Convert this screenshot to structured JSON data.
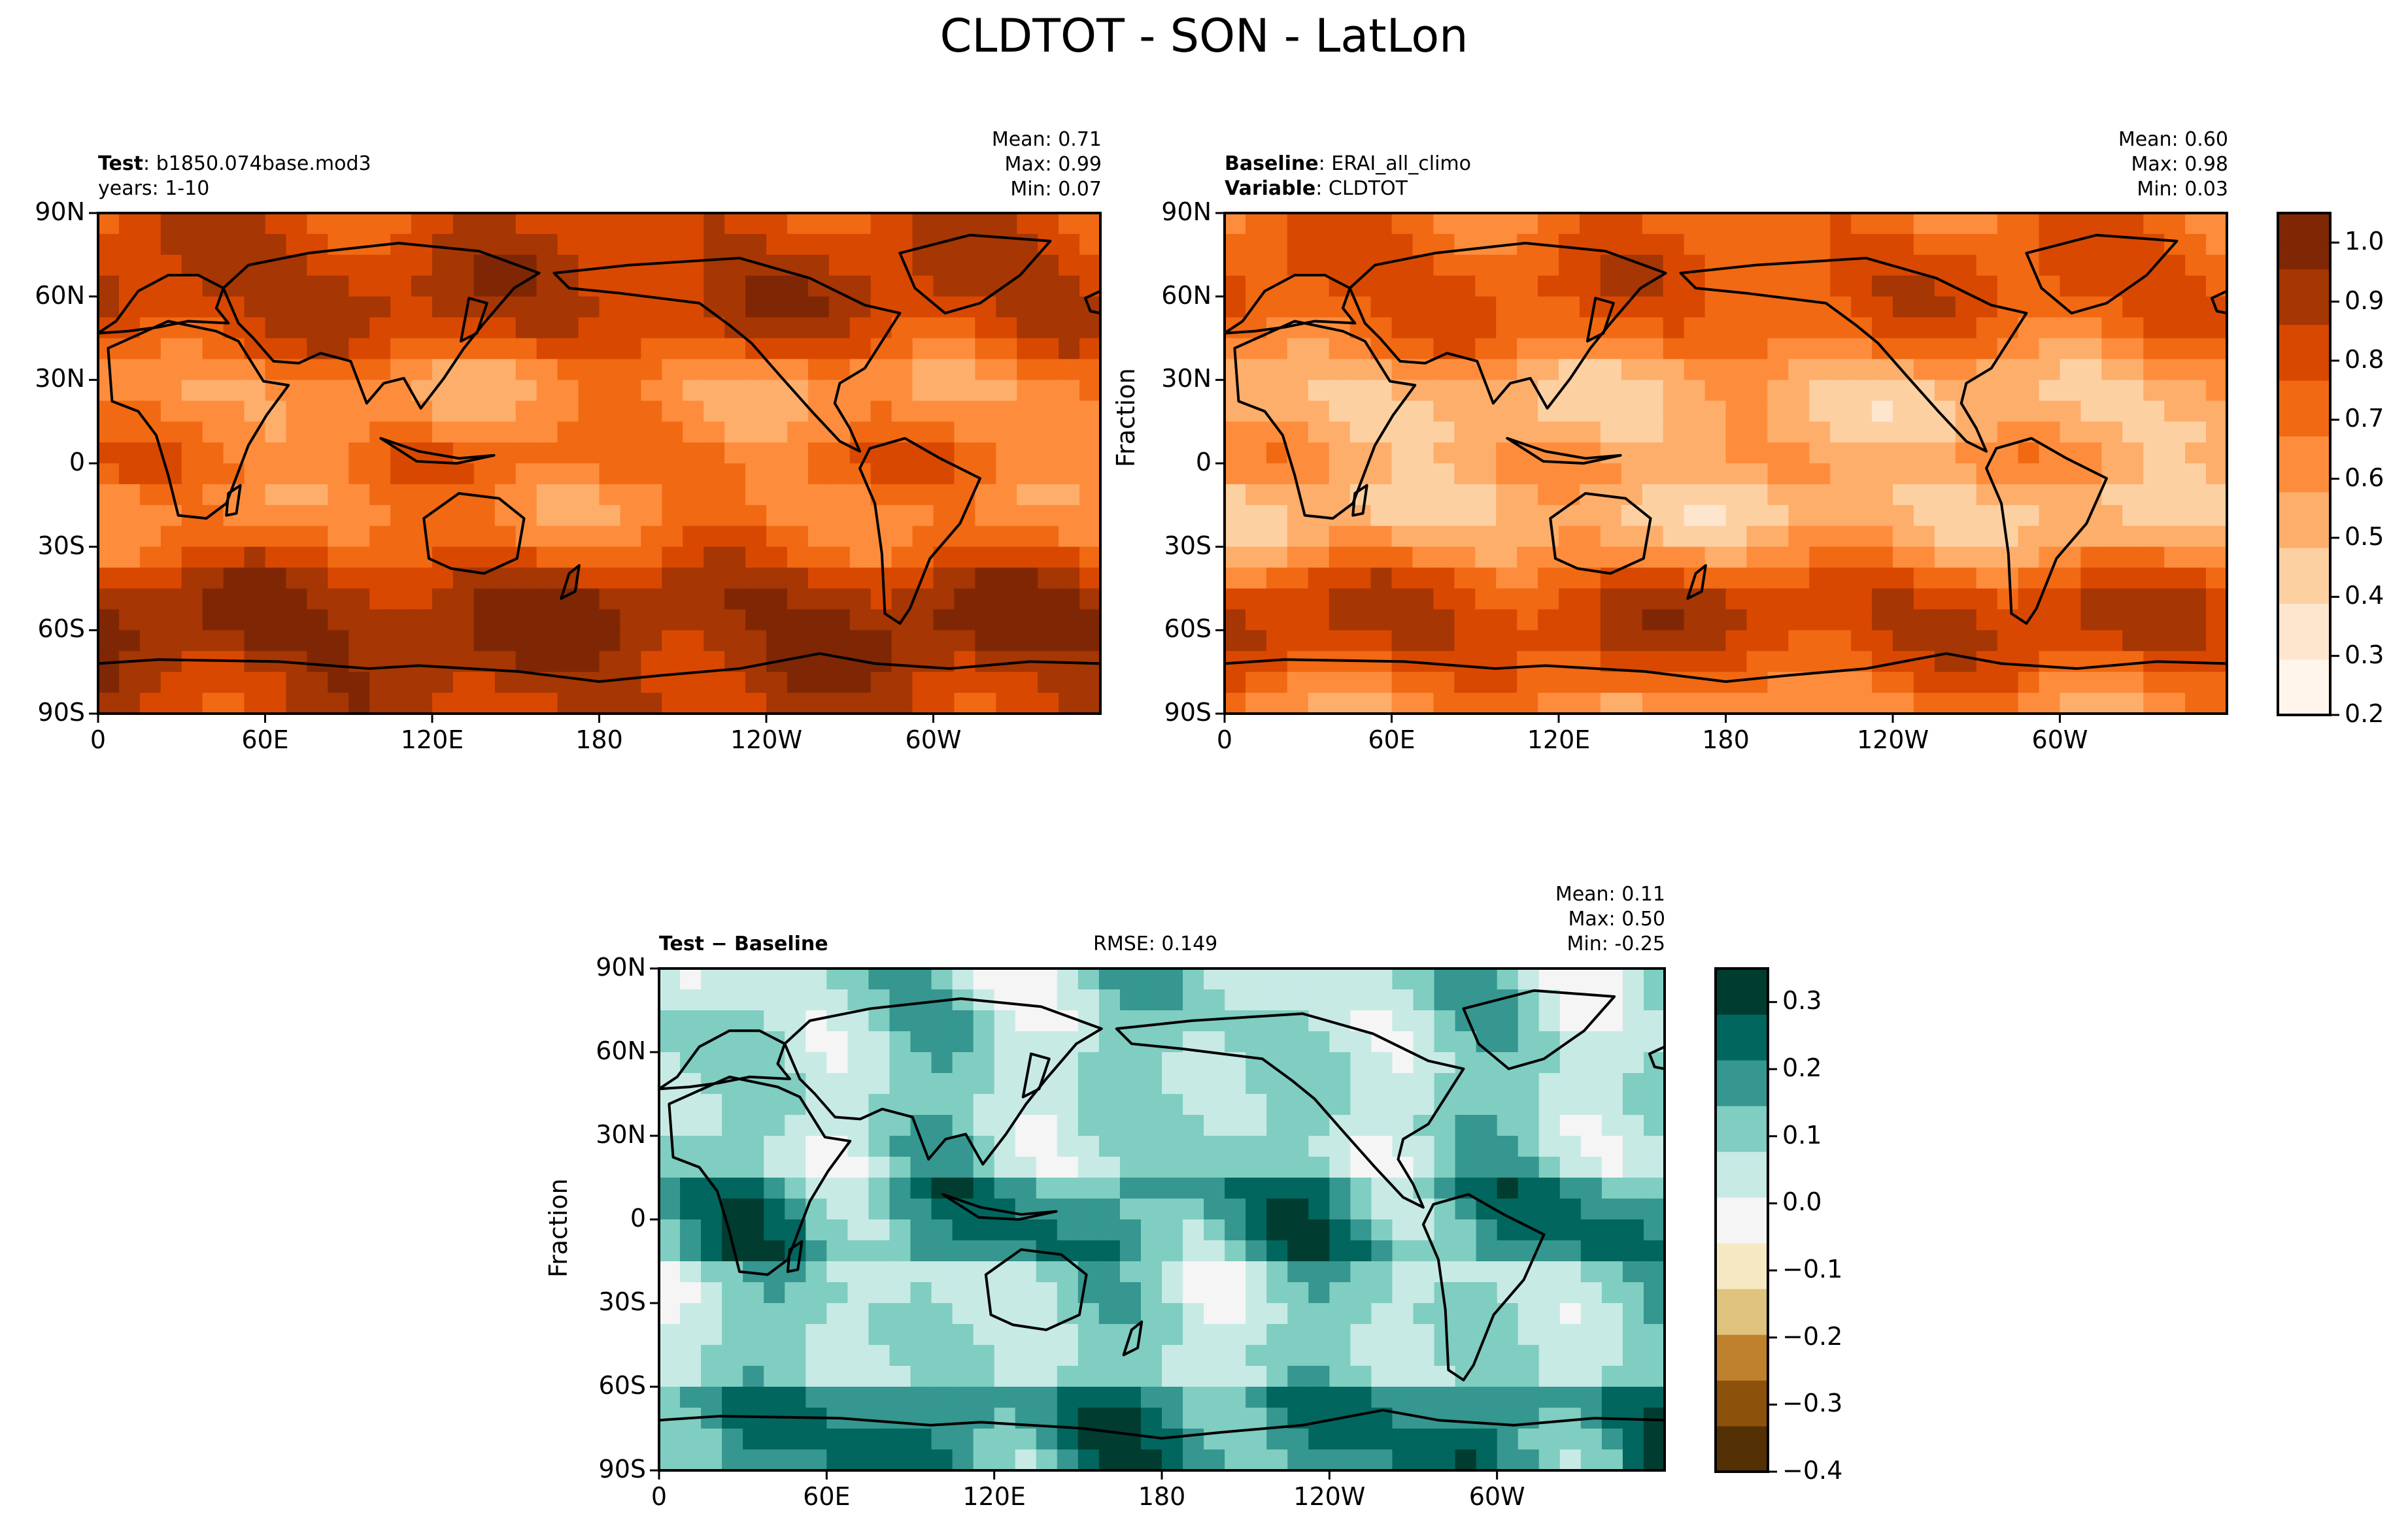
{
  "figure_title": "CLDTOT - SON - LatLon",
  "colors": {
    "sequential": [
      "#fff5eb",
      "#fee6ce",
      "#fdd0a2",
      "#fdae6b",
      "#fd8d3c",
      "#f16913",
      "#d94801",
      "#a63603",
      "#7f2704"
    ],
    "diverging": [
      "#543005",
      "#8c510a",
      "#bf812d",
      "#dfc27d",
      "#f6e8c3",
      "#f5f5f5",
      "#c7eae5",
      "#80cdc1",
      "#35978f",
      "#01665e",
      "#003c30"
    ],
    "land_fill": "#ffffff",
    "coastline": "#000000"
  },
  "panels": {
    "test": {
      "label_bold": "Test",
      "label_value": "b1850.074base.mod3",
      "years": "years: 1-10",
      "stats": {
        "mean": "Mean:  0.71",
        "max": "Max:  0.99",
        "min": "Min:  0.07"
      }
    },
    "baseline": {
      "label_bold": "Baseline",
      "label_value": "ERAI_all_climo",
      "variable_bold": "Variable",
      "variable_value": "CLDTOT",
      "stats": {
        "mean": "Mean:  0.60",
        "max": "Max:  0.98",
        "min": "Min:  0.03"
      },
      "ylabel": "Fraction"
    },
    "diff": {
      "label_bold": "Test − Baseline",
      "rmse": "RMSE: 0.149",
      "stats": {
        "mean": "Mean:  0.11",
        "max": "Max:  0.50",
        "min": "Min: -0.25"
      },
      "ylabel": "Fraction"
    }
  },
  "axes": {
    "lat_ticks": [
      "90N",
      "60N",
      "30N",
      "0",
      "30S",
      "60S",
      "90S"
    ],
    "lon_ticks": [
      "0",
      "60E",
      "120E",
      "180",
      "120W",
      "60W"
    ]
  },
  "chart_data": [
    {
      "type": "heatmap",
      "title": "Test: b1850.074base.mod3 (years: 1-10)",
      "variable": "CLDTOT",
      "units": "Fraction",
      "x": "longitude 0 to 360",
      "y": "latitude -90 to 90",
      "zlim": [
        0.2,
        1.05
      ],
      "stats": {
        "mean": 0.71,
        "max": 0.99,
        "min": 0.07
      },
      "zonal_profile": {
        "lat": [
          -90,
          -75,
          -60,
          -45,
          -30,
          -15,
          0,
          15,
          30,
          45,
          60,
          75,
          90
        ],
        "value": [
          0.85,
          0.9,
          0.98,
          0.92,
          0.72,
          0.62,
          0.74,
          0.62,
          0.58,
          0.82,
          0.9,
          0.86,
          0.8
        ]
      }
    },
    {
      "type": "heatmap",
      "title": "Baseline: ERAI_all_climo",
      "variable": "CLDTOT",
      "units": "Fraction",
      "x": "longitude 0 to 360",
      "y": "latitude -90 to 90",
      "zlim": [
        0.2,
        1.05
      ],
      "stats": {
        "mean": 0.6,
        "max": 0.98,
        "min": 0.03
      },
      "zonal_profile": {
        "lat": [
          -90,
          -75,
          -60,
          -45,
          -30,
          -15,
          0,
          15,
          30,
          45,
          60,
          75,
          90
        ],
        "value": [
          0.6,
          0.75,
          0.88,
          0.82,
          0.56,
          0.45,
          0.6,
          0.48,
          0.5,
          0.72,
          0.8,
          0.78,
          0.7
        ]
      }
    },
    {
      "type": "heatmap",
      "title": "Test − Baseline",
      "variable": "CLDTOT",
      "units": "Fraction",
      "x": "longitude 0 to 360",
      "y": "latitude -90 to 90",
      "zlim": [
        -0.4,
        0.35
      ],
      "rmse": 0.149,
      "stats": {
        "mean": 0.11,
        "max": 0.5,
        "min": -0.25
      }
    }
  ],
  "colorbars": {
    "sequential": {
      "ticks": [
        "1.0",
        "0.9",
        "0.8",
        "0.7",
        "0.6",
        "0.5",
        "0.4",
        "0.3",
        "0.2"
      ],
      "range": [
        0.2,
        1.05
      ]
    },
    "diverging": {
      "ticks": [
        "0.3",
        "0.2",
        "0.1",
        "0.0",
        "−0.1",
        "−0.2",
        "−0.3",
        "−0.4"
      ],
      "range": [
        -0.4,
        0.35
      ]
    }
  }
}
